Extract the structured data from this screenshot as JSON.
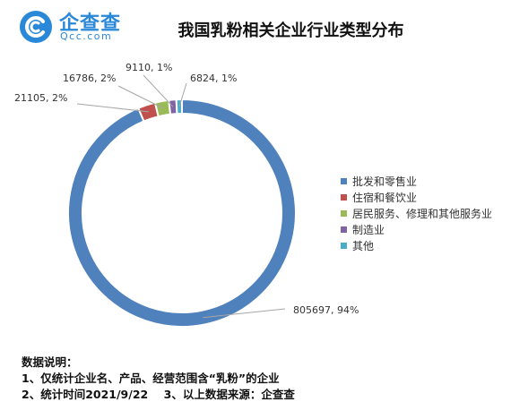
{
  "logo": {
    "cn": "企查查",
    "en": "Qcc.com"
  },
  "chart_data": {
    "type": "pie",
    "title": "我国乳粉相关企业行业类型分布",
    "donut": true,
    "legend_position": "right",
    "slices": [
      {
        "label": "批发和零售业",
        "value": 805697,
        "percent": "94%",
        "color": "#4f81bd",
        "data_label": "805697, 94%"
      },
      {
        "label": "住宿和餐饮业",
        "value": 21105,
        "percent": "2%",
        "color": "#c0504d",
        "data_label": "21105, 2%"
      },
      {
        "label": "居民服务、修理和其他服务业",
        "value": 16786,
        "percent": "2%",
        "color": "#9bbb59",
        "data_label": "16786, 2%"
      },
      {
        "label": "制造业",
        "value": 9110,
        "percent": "1%",
        "color": "#8064a2",
        "data_label": "9110, 1%"
      },
      {
        "label": "其他",
        "value": 6824,
        "percent": "1%",
        "color": "#4bacc6",
        "data_label": "6824, 1%"
      }
    ]
  },
  "notes": {
    "heading": "数据说明：",
    "line1": "1、仅统计企业名、产品、经营范围含“乳粉”的企业",
    "line2": "2、统计时间2021/9/22    3、以上数据来源：企查查"
  }
}
